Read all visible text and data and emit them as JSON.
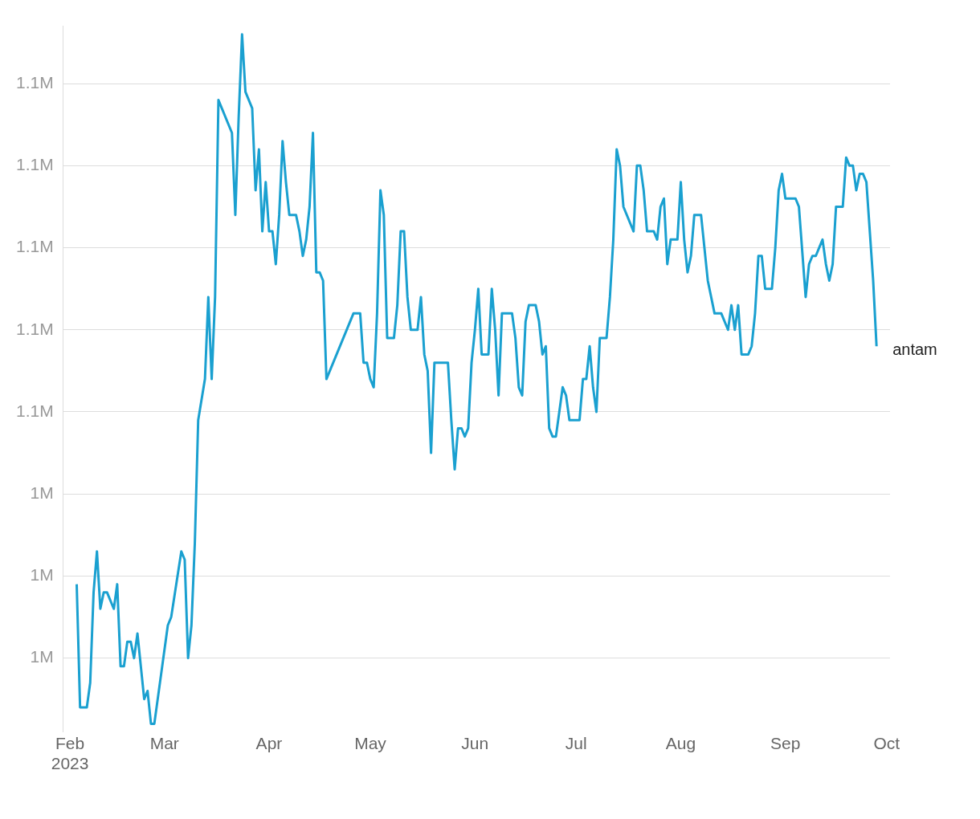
{
  "chart_data": {
    "type": "line",
    "legend": false,
    "grid": "y",
    "marker": "none",
    "line_style": "solid",
    "xlim": [
      "2023-01-30",
      "2023-10-02"
    ],
    "xticks": [
      {
        "value": "2023-02-01",
        "label": "Feb 2023"
      },
      {
        "value": "2023-03-01",
        "label": "Mar"
      },
      {
        "value": "2023-04-01",
        "label": "Apr"
      },
      {
        "value": "2023-05-01",
        "label": "May"
      },
      {
        "value": "2023-06-01",
        "label": "Jun"
      },
      {
        "value": "2023-07-01",
        "label": "Jul"
      },
      {
        "value": "2023-08-01",
        "label": "Aug"
      },
      {
        "value": "2023-09-01",
        "label": "Sep"
      },
      {
        "value": "2023-10-01",
        "label": "Oct"
      }
    ],
    "ylim": [
      1011000,
      1097000
    ],
    "yticks": [
      {
        "value": 1020000,
        "label": "1M"
      },
      {
        "value": 1030000,
        "label": "1M"
      },
      {
        "value": 1040000,
        "label": "1M"
      },
      {
        "value": 1050000,
        "label": "1.1M"
      },
      {
        "value": 1060000,
        "label": "1.1M"
      },
      {
        "value": 1070000,
        "label": "1.1M"
      },
      {
        "value": 1080000,
        "label": "1.1M"
      },
      {
        "value": 1090000,
        "label": "1.1M"
      }
    ],
    "series": [
      {
        "name": "antam",
        "color": "#1aa0d0",
        "x": [
          "2023-02-03",
          "2023-02-04",
          "2023-02-06",
          "2023-02-07",
          "2023-02-08",
          "2023-02-09",
          "2023-02-10",
          "2023-02-11",
          "2023-02-12",
          "2023-02-14",
          "2023-02-15",
          "2023-02-16",
          "2023-02-17",
          "2023-02-18",
          "2023-02-19",
          "2023-02-20",
          "2023-02-21",
          "2023-02-23",
          "2023-02-24",
          "2023-02-25",
          "2023-02-26",
          "2023-03-02",
          "2023-03-03",
          "2023-03-06",
          "2023-03-07",
          "2023-03-08",
          "2023-03-09",
          "2023-03-10",
          "2023-03-11",
          "2023-03-13",
          "2023-03-14",
          "2023-03-15",
          "2023-03-16",
          "2023-03-17",
          "2023-03-21",
          "2023-03-22",
          "2023-03-23",
          "2023-03-24",
          "2023-03-25",
          "2023-03-27",
          "2023-03-28",
          "2023-03-29",
          "2023-03-30",
          "2023-03-31",
          "2023-04-01",
          "2023-04-02",
          "2023-04-03",
          "2023-04-04",
          "2023-04-05",
          "2023-04-06",
          "2023-04-07",
          "2023-04-09",
          "2023-04-10",
          "2023-04-11",
          "2023-04-12",
          "2023-04-13",
          "2023-04-14",
          "2023-04-15",
          "2023-04-16",
          "2023-04-17",
          "2023-04-18",
          "2023-04-26",
          "2023-04-28",
          "2023-04-29",
          "2023-04-30",
          "2023-05-01",
          "2023-05-02",
          "2023-05-03",
          "2023-05-04",
          "2023-05-05",
          "2023-05-06",
          "2023-05-08",
          "2023-05-09",
          "2023-05-10",
          "2023-05-11",
          "2023-05-12",
          "2023-05-13",
          "2023-05-15",
          "2023-05-16",
          "2023-05-17",
          "2023-05-18",
          "2023-05-19",
          "2023-05-20",
          "2023-05-24",
          "2023-05-25",
          "2023-05-26",
          "2023-05-27",
          "2023-05-28",
          "2023-05-29",
          "2023-05-30",
          "2023-05-31",
          "2023-06-01",
          "2023-06-02",
          "2023-06-03",
          "2023-06-05",
          "2023-06-06",
          "2023-06-07",
          "2023-06-08",
          "2023-06-09",
          "2023-06-12",
          "2023-06-13",
          "2023-06-14",
          "2023-06-15",
          "2023-06-16",
          "2023-06-17",
          "2023-06-19",
          "2023-06-20",
          "2023-06-21",
          "2023-06-22",
          "2023-06-23",
          "2023-06-24",
          "2023-06-25",
          "2023-06-27",
          "2023-06-28",
          "2023-06-29",
          "2023-07-02",
          "2023-07-03",
          "2023-07-04",
          "2023-07-05",
          "2023-07-06",
          "2023-07-07",
          "2023-07-08",
          "2023-07-10",
          "2023-07-11",
          "2023-07-12",
          "2023-07-13",
          "2023-07-14",
          "2023-07-15",
          "2023-07-18",
          "2023-07-19",
          "2023-07-20",
          "2023-07-21",
          "2023-07-22",
          "2023-07-24",
          "2023-07-25",
          "2023-07-26",
          "2023-07-27",
          "2023-07-28",
          "2023-07-29",
          "2023-07-31",
          "2023-08-01",
          "2023-08-02",
          "2023-08-03",
          "2023-08-04",
          "2023-08-05",
          "2023-08-07",
          "2023-08-09",
          "2023-08-11",
          "2023-08-13",
          "2023-08-15",
          "2023-08-16",
          "2023-08-17",
          "2023-08-18",
          "2023-08-19",
          "2023-08-21",
          "2023-08-22",
          "2023-08-23",
          "2023-08-24",
          "2023-08-25",
          "2023-08-26",
          "2023-08-28",
          "2023-08-29",
          "2023-08-30",
          "2023-08-31",
          "2023-09-01",
          "2023-09-04",
          "2023-09-05",
          "2023-09-07",
          "2023-09-08",
          "2023-09-09",
          "2023-09-10",
          "2023-09-12",
          "2023-09-13",
          "2023-09-14",
          "2023-09-15",
          "2023-09-16",
          "2023-09-18",
          "2023-09-19",
          "2023-09-20",
          "2023-09-21",
          "2023-09-22",
          "2023-09-23",
          "2023-09-24",
          "2023-09-25",
          "2023-09-27",
          "2023-09-28"
        ],
        "values": [
          1029000,
          1014000,
          1014000,
          1017000,
          1028000,
          1033000,
          1026000,
          1028000,
          1028000,
          1026000,
          1029000,
          1019000,
          1019000,
          1022000,
          1022000,
          1020000,
          1023000,
          1015000,
          1016000,
          1012000,
          1012000,
          1024000,
          1025000,
          1033000,
          1032000,
          1020000,
          1024000,
          1034000,
          1049000,
          1054000,
          1064000,
          1054000,
          1064000,
          1088000,
          1084000,
          1074000,
          1086000,
          1096000,
          1089000,
          1087000,
          1077000,
          1082000,
          1072000,
          1078000,
          1072000,
          1072000,
          1068000,
          1074000,
          1083000,
          1078000,
          1074000,
          1074000,
          1072000,
          1069000,
          1071000,
          1075000,
          1084000,
          1067000,
          1067000,
          1066000,
          1054000,
          1062000,
          1062000,
          1056000,
          1056000,
          1054000,
          1053000,
          1062000,
          1077000,
          1074000,
          1059000,
          1059000,
          1063000,
          1072000,
          1072000,
          1064000,
          1060000,
          1060000,
          1064000,
          1057000,
          1055000,
          1045000,
          1056000,
          1056000,
          1049000,
          1043000,
          1048000,
          1048000,
          1047000,
          1048000,
          1056000,
          1060000,
          1065000,
          1057000,
          1057000,
          1065000,
          1060000,
          1052000,
          1062000,
          1062000,
          1059000,
          1053000,
          1052000,
          1061000,
          1063000,
          1063000,
          1061000,
          1057000,
          1058000,
          1048000,
          1047000,
          1047000,
          1053000,
          1052000,
          1049000,
          1049000,
          1054000,
          1054000,
          1058000,
          1053000,
          1050000,
          1059000,
          1059000,
          1064000,
          1071000,
          1082000,
          1080000,
          1075000,
          1072000,
          1080000,
          1080000,
          1077000,
          1072000,
          1072000,
          1071000,
          1075000,
          1076000,
          1068000,
          1071000,
          1071000,
          1078000,
          1071000,
          1067000,
          1069000,
          1074000,
          1074000,
          1066000,
          1062000,
          1062000,
          1060000,
          1063000,
          1060000,
          1063000,
          1057000,
          1057000,
          1058000,
          1062000,
          1069000,
          1069000,
          1065000,
          1065000,
          1070000,
          1077000,
          1079000,
          1076000,
          1076000,
          1075000,
          1064000,
          1068000,
          1069000,
          1069000,
          1071000,
          1068000,
          1066000,
          1068000,
          1075000,
          1075000,
          1081000,
          1080000,
          1080000,
          1077000,
          1079000,
          1079000,
          1078000,
          1066000,
          1058000
        ]
      }
    ]
  }
}
